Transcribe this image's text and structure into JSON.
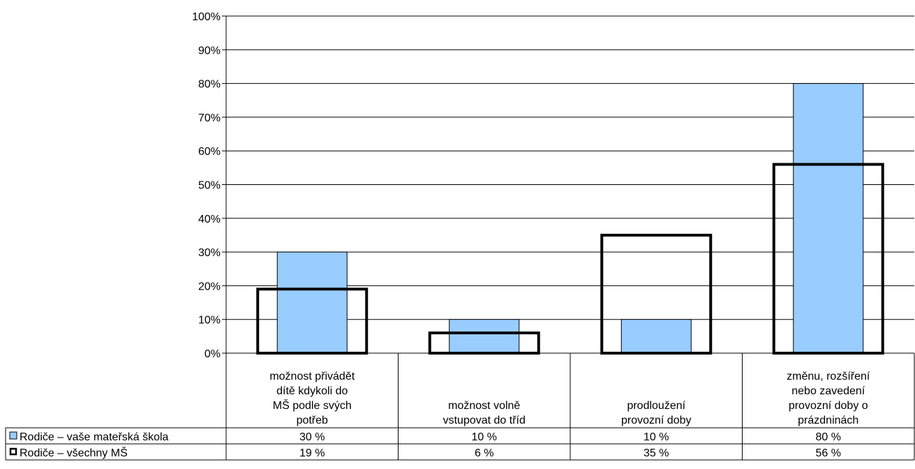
{
  "chart_data": {
    "type": "bar",
    "title": "",
    "xlabel": "",
    "ylabel": "",
    "ylim": [
      0,
      100
    ],
    "y_ticks": [
      "0%",
      "10%",
      "20%",
      "30%",
      "40%",
      "50%",
      "60%",
      "70%",
      "80%",
      "90%",
      "100%"
    ],
    "grid": true,
    "legend": "data-table-left",
    "categories": [
      [
        "možnost přivádět",
        "dítě kdykoli do",
        "MŠ podle svých",
        "potřeb"
      ],
      [
        "možnost volně",
        "vstupovat do tříd"
      ],
      [
        "prodloužení",
        "provozní doby"
      ],
      [
        "změnu, rozšíření",
        "nebo zavedení",
        "provozní doby o",
        "prázdninách"
      ]
    ],
    "series": [
      {
        "name": "Rodiče – vaše mateřská škola",
        "values": [
          30,
          10,
          10,
          80
        ],
        "labels": [
          "30 %",
          "10 %",
          "10 %",
          "80 %"
        ],
        "style": "filled",
        "color": "#99ccff"
      },
      {
        "name": "Rodiče – všechny MŠ",
        "values": [
          19,
          6,
          35,
          56
        ],
        "labels": [
          "19 %",
          "6 %",
          "35 %",
          "56 %"
        ],
        "style": "outline",
        "color": "#000000"
      }
    ]
  }
}
